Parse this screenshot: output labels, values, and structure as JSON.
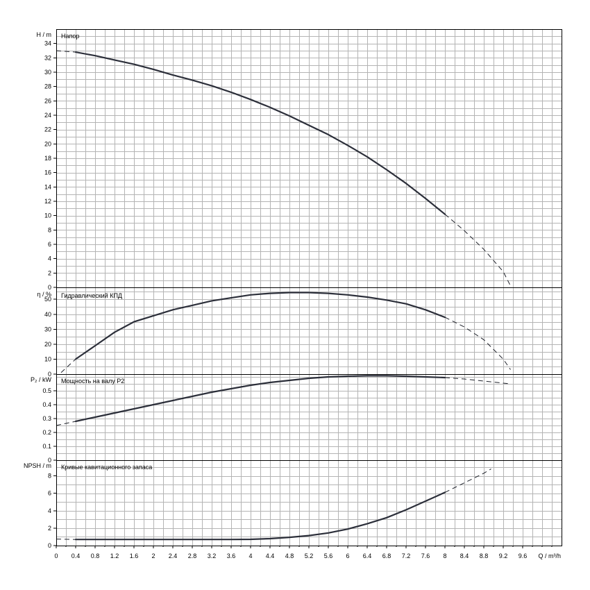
{
  "chart_data": {
    "type": "line",
    "x_axis": {
      "label": "Q / m³/h",
      "range": [
        0,
        10.4
      ],
      "ticks": [
        "0",
        "0.4",
        "0.8",
        "1.2",
        "1.6",
        "2",
        "2.4",
        "2.8",
        "3.2",
        "3.6",
        "4",
        "4.4",
        "4.8",
        "5.2",
        "5.6",
        "6",
        "6.4",
        "6.8",
        "7.2",
        "7.6",
        "8",
        "8.4",
        "8.8",
        "9.2",
        "9.6"
      ]
    },
    "panels": [
      {
        "id": "head",
        "title": "Напор",
        "ylabel": "H / m",
        "ylim": [
          0,
          36
        ],
        "ticks": [
          "0",
          "2",
          "4",
          "6",
          "8",
          "10",
          "12",
          "14",
          "16",
          "18",
          "20",
          "22",
          "24",
          "26",
          "28",
          "30",
          "32",
          "34"
        ],
        "solid_until_x": 8.0,
        "series": [
          {
            "x": [
              0,
              0.4,
              0.8,
              1.2,
              1.6,
              2,
              2.4,
              2.8,
              3.2,
              3.6,
              4,
              4.4,
              4.8,
              5.2,
              5.6,
              6,
              6.4,
              6.8,
              7.2,
              7.6,
              8,
              8.4,
              8.8,
              9.2,
              9.35
            ],
            "y": [
              33.0,
              32.8,
              32.3,
              31.7,
              31.1,
              30.4,
              29.6,
              28.9,
              28.1,
              27.2,
              26.2,
              25.1,
              23.9,
              22.6,
              21.3,
              19.8,
              18.2,
              16.4,
              14.5,
              12.4,
              10.2,
              7.9,
              5.3,
              2.2,
              0.2
            ]
          }
        ]
      },
      {
        "id": "efficiency",
        "title": "Гидравлический КПД",
        "ylabel": "η / %",
        "ylim": [
          0,
          58
        ],
        "ticks": [
          "0",
          "10",
          "20",
          "30",
          "40",
          "50"
        ],
        "solid_until_x": 8.0,
        "series": [
          {
            "x": [
              0.1,
              0.4,
              0.8,
              1.2,
              1.6,
              2,
              2.4,
              2.8,
              3.2,
              3.6,
              4,
              4.4,
              4.8,
              5.2,
              5.6,
              6,
              6.4,
              6.8,
              7.2,
              7.6,
              8,
              8.4,
              8.8,
              9.2,
              9.35
            ],
            "y": [
              1,
              10,
              19,
              28,
              35,
              39,
              43,
              46,
              49,
              51,
              53,
              54,
              54.5,
              54.5,
              54,
              53,
              51.5,
              49.5,
              47,
              43,
              38,
              31.5,
              23,
              10,
              3
            ]
          }
        ]
      },
      {
        "id": "power",
        "title": "Мощность на валу P2",
        "ylabel": "P₂ / kW",
        "ylim": [
          0,
          0.62
        ],
        "ticks": [
          "0",
          "0.1",
          "0.2",
          "0.3",
          "0.4",
          "0.5"
        ],
        "solid_until_x": 8.0,
        "series": [
          {
            "x": [
              0,
              0.4,
              0.8,
              1.2,
              1.6,
              2,
              2.4,
              2.8,
              3.2,
              3.6,
              4,
              4.4,
              4.8,
              5.2,
              5.6,
              6,
              6.4,
              6.8,
              7.2,
              7.6,
              8,
              8.4,
              8.8,
              9.2,
              9.35
            ],
            "y": [
              0.25,
              0.28,
              0.31,
              0.34,
              0.37,
              0.4,
              0.43,
              0.46,
              0.49,
              0.515,
              0.54,
              0.56,
              0.575,
              0.59,
              0.6,
              0.605,
              0.608,
              0.608,
              0.605,
              0.6,
              0.595,
              0.585,
              0.57,
              0.555,
              0.55
            ]
          }
        ]
      },
      {
        "id": "npsh",
        "title": "Кривые кавитационного запаса",
        "ylabel": "NPSH / m",
        "ylim": [
          0,
          9.8
        ],
        "ticks": [
          "0",
          "2",
          "4",
          "6",
          "8"
        ],
        "solid_until_x": 8.0,
        "series": [
          {
            "x": [
              0,
              0.4,
              0.8,
              1.2,
              1.6,
              2,
              2.4,
              2.8,
              3.2,
              3.6,
              4,
              4.4,
              4.8,
              5.2,
              5.6,
              6,
              6.4,
              6.8,
              7.2,
              7.6,
              8,
              8.4,
              8.8,
              8.95
            ],
            "y": [
              0.75,
              0.7,
              0.7,
              0.7,
              0.7,
              0.7,
              0.7,
              0.7,
              0.7,
              0.7,
              0.72,
              0.8,
              0.95,
              1.15,
              1.45,
              1.9,
              2.5,
              3.2,
              4.1,
              5.1,
              6.1,
              7.2,
              8.3,
              8.8
            ]
          }
        ]
      }
    ]
  }
}
